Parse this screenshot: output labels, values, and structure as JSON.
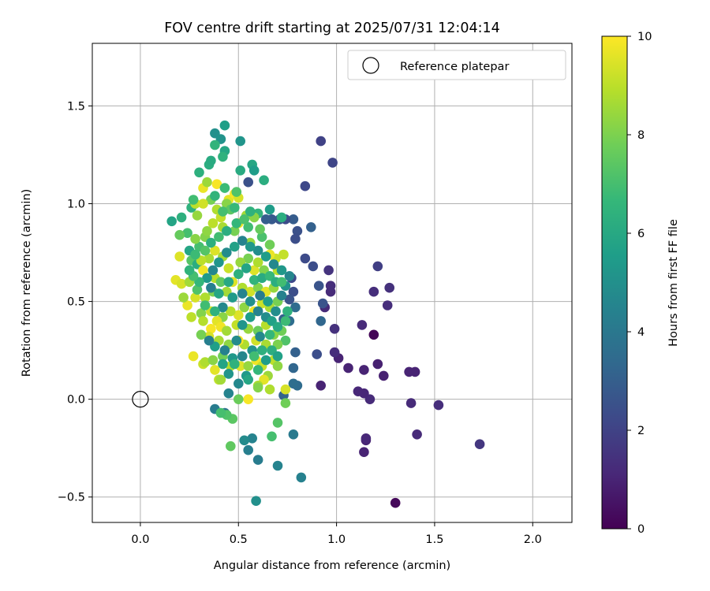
{
  "chart_data": {
    "type": "scatter",
    "title": "FOV centre drift starting at 2025/07/31 12:04:14",
    "xlabel": "Angular distance from reference (arcmin)",
    "ylabel": "Rotation from reference (arcmin)",
    "xlim": [
      -0.245,
      2.2
    ],
    "ylim": [
      -0.63,
      1.82
    ],
    "xticks": [
      0.0,
      0.5,
      1.0,
      1.5,
      2.0
    ],
    "xtick_labels": [
      "0.0",
      "0.5",
      "1.0",
      "1.5",
      "2.0"
    ],
    "yticks": [
      -0.5,
      0.0,
      0.5,
      1.0,
      1.5
    ],
    "ytick_labels": [
      "−0.5",
      "0.0",
      "0.5",
      "1.0",
      "1.5"
    ],
    "grid": true,
    "legend": {
      "position": "top-right",
      "label": "Reference platepar"
    },
    "reference_point": {
      "x": 0.0,
      "y": 0.0
    },
    "colorbar": {
      "label": "Hours from first FF file",
      "range": [
        0,
        10
      ],
      "ticks": [
        0,
        2,
        4,
        6,
        8,
        10
      ],
      "tick_labels": [
        "0",
        "2",
        "4",
        "6",
        "8",
        "10"
      ],
      "colormap": "viridis"
    },
    "colormap_stops": [
      "#440154",
      "#482878",
      "#3e4989",
      "#31688e",
      "#26828e",
      "#1f9e89",
      "#35b779",
      "#6ece58",
      "#b5de2b",
      "#fde725"
    ],
    "points": [
      [
        1.3,
        -0.53,
        0.2
      ],
      [
        1.19,
        0.33,
        0.1
      ],
      [
        1.14,
        -0.27,
        1.0
      ],
      [
        1.15,
        -0.21,
        1.0
      ],
      [
        1.15,
        -0.2,
        1.1
      ],
      [
        1.14,
        0.15,
        1.0
      ],
      [
        1.21,
        0.18,
        0.9
      ],
      [
        1.24,
        0.12,
        0.9
      ],
      [
        1.37,
        0.14,
        1.0
      ],
      [
        1.4,
        0.14,
        1.0
      ],
      [
        1.38,
        -0.02,
        1.2
      ],
      [
        1.52,
        -0.03,
        1.3
      ],
      [
        1.41,
        -0.18,
        1.2
      ],
      [
        1.73,
        -0.23,
        1.6
      ],
      [
        1.17,
        0.0,
        1.2
      ],
      [
        1.11,
        0.04,
        1.1
      ],
      [
        1.14,
        0.03,
        1.1
      ],
      [
        1.06,
        0.16,
        1.0
      ],
      [
        1.01,
        0.21,
        1.0
      ],
      [
        0.92,
        0.07,
        1.0
      ],
      [
        1.13,
        0.38,
        1.2
      ],
      [
        1.19,
        0.55,
        1.3
      ],
      [
        1.26,
        0.48,
        1.3
      ],
      [
        1.27,
        0.57,
        1.4
      ],
      [
        1.21,
        0.68,
        1.9
      ],
      [
        0.99,
        0.36,
        1.4
      ],
      [
        0.97,
        0.55,
        1.2
      ],
      [
        0.97,
        0.58,
        1.3
      ],
      [
        0.94,
        0.47,
        1.2
      ],
      [
        0.96,
        0.66,
        1.5
      ],
      [
        0.92,
        1.32,
        2.0
      ],
      [
        0.98,
        1.21,
        2.1
      ],
      [
        0.84,
        1.09,
        2.2
      ],
      [
        0.55,
        1.11,
        2.5
      ],
      [
        0.99,
        0.24,
        1.3
      ],
      [
        0.9,
        0.23,
        2.4
      ],
      [
        0.93,
        0.49,
        2.6
      ],
      [
        0.92,
        0.4,
        3.3
      ],
      [
        0.91,
        0.58,
        2.6
      ],
      [
        0.87,
        0.88,
        3.1
      ],
      [
        0.78,
        0.92,
        2.9
      ],
      [
        0.74,
        0.92,
        2.3
      ],
      [
        0.71,
        0.92,
        2.6
      ],
      [
        0.67,
        0.92,
        2.8
      ],
      [
        0.64,
        0.92,
        3.0
      ],
      [
        0.8,
        0.86,
        2.5
      ],
      [
        0.79,
        0.82,
        2.4
      ],
      [
        0.84,
        0.72,
        2.3
      ],
      [
        0.88,
        0.68,
        2.4
      ],
      [
        0.77,
        0.62,
        2.2
      ],
      [
        0.78,
        0.55,
        2.4
      ],
      [
        0.76,
        0.51,
        2.6
      ],
      [
        0.79,
        0.47,
        3.5
      ],
      [
        0.73,
        0.41,
        3.1
      ],
      [
        0.76,
        0.4,
        3.6
      ],
      [
        0.79,
        0.24,
        3.1
      ],
      [
        0.78,
        0.16,
        3.3
      ],
      [
        0.8,
        0.07,
        3.5
      ],
      [
        0.78,
        0.08,
        3.6
      ],
      [
        0.73,
        0.02,
        3.2
      ],
      [
        0.78,
        -0.18,
        4.1
      ],
      [
        0.82,
        -0.4,
        4.4
      ],
      [
        0.7,
        -0.34,
        4.5
      ],
      [
        0.6,
        -0.31,
        4.2
      ],
      [
        0.55,
        -0.26,
        4.3
      ],
      [
        0.57,
        -0.2,
        4.5
      ],
      [
        0.53,
        -0.21,
        4.8
      ],
      [
        0.59,
        -0.52,
        5.0
      ],
      [
        0.38,
        -0.05,
        4.2
      ],
      [
        0.43,
        -0.07,
        3.8
      ],
      [
        0.45,
        0.03,
        4.5
      ],
      [
        0.38,
        1.36,
        5.0
      ],
      [
        0.41,
        1.33,
        5.1
      ],
      [
        0.43,
        1.4,
        5.6
      ],
      [
        0.51,
        1.32,
        5.2
      ],
      [
        0.38,
        1.3,
        6.5
      ],
      [
        0.43,
        1.27,
        5.9
      ],
      [
        0.35,
        1.2,
        6.2
      ],
      [
        0.36,
        1.22,
        6.1
      ],
      [
        0.57,
        1.2,
        5.9
      ],
      [
        0.58,
        1.17,
        5.5
      ],
      [
        0.51,
        1.17,
        6.1
      ],
      [
        0.63,
        1.12,
        6.2
      ],
      [
        0.3,
        1.16,
        6.3
      ],
      [
        0.42,
        1.24,
        6.4
      ],
      [
        0.66,
        0.97,
        5.5
      ],
      [
        0.6,
        0.95,
        6.5
      ],
      [
        0.72,
        0.93,
        6.2
      ],
      [
        0.55,
        0.88,
        6.9
      ],
      [
        0.62,
        0.83,
        7.1
      ],
      [
        0.16,
        0.91,
        5.8
      ],
      [
        0.21,
        0.93,
        6.3
      ],
      [
        0.26,
        0.98,
        6.4
      ],
      [
        0.24,
        0.85,
        7.0
      ],
      [
        0.2,
        0.84,
        7.6
      ],
      [
        0.25,
        0.76,
        5.9
      ],
      [
        0.2,
        0.73,
        9.5
      ],
      [
        0.18,
        0.61,
        9.6
      ],
      [
        0.21,
        0.59,
        9.4
      ],
      [
        0.25,
        0.6,
        8.6
      ],
      [
        0.26,
        0.71,
        7.3
      ],
      [
        0.29,
        0.69,
        6.2
      ],
      [
        0.3,
        0.78,
        7.0
      ],
      [
        0.28,
        0.82,
        8.2
      ],
      [
        0.33,
        0.83,
        8.1
      ],
      [
        0.32,
        1.08,
        9.7
      ],
      [
        0.34,
        1.11,
        8.5
      ],
      [
        0.39,
        1.1,
        9.9
      ],
      [
        0.36,
        1.02,
        7.9
      ],
      [
        0.45,
        1.02,
        9.6
      ],
      [
        0.48,
        1.05,
        9.9
      ],
      [
        0.5,
        1.03,
        9.4
      ],
      [
        0.44,
        1.0,
        8.2
      ],
      [
        0.39,
        0.97,
        8.8
      ],
      [
        0.46,
        0.97,
        7.4
      ],
      [
        0.41,
        0.93,
        9.1
      ],
      [
        0.5,
        0.9,
        9.8
      ],
      [
        0.42,
        0.88,
        8.7
      ],
      [
        0.48,
        0.86,
        7.9
      ],
      [
        0.34,
        0.86,
        8.3
      ],
      [
        0.37,
        0.9,
        9.0
      ],
      [
        0.29,
        0.94,
        8.4
      ],
      [
        0.28,
        1.0,
        9.0
      ],
      [
        0.32,
        1.0,
        9.3
      ],
      [
        0.54,
        0.94,
        8.6
      ],
      [
        0.58,
        0.93,
        8.2
      ],
      [
        0.61,
        0.87,
        7.6
      ],
      [
        0.56,
        0.8,
        8.4
      ],
      [
        0.66,
        0.79,
        7.8
      ],
      [
        0.69,
        0.72,
        9.2
      ],
      [
        0.66,
        0.74,
        9.7
      ],
      [
        0.73,
        0.74,
        9.1
      ],
      [
        0.7,
        0.66,
        8.9
      ],
      [
        0.63,
        0.66,
        8.1
      ],
      [
        0.58,
        0.66,
        9.5
      ],
      [
        0.6,
        0.7,
        8.8
      ],
      [
        0.55,
        0.72,
        7.9
      ],
      [
        0.51,
        0.7,
        8.4
      ],
      [
        0.45,
        0.67,
        9.2
      ],
      [
        0.42,
        0.73,
        8.6
      ],
      [
        0.38,
        0.76,
        9.5
      ],
      [
        0.35,
        0.72,
        8.7
      ],
      [
        0.31,
        0.71,
        9.0
      ],
      [
        0.32,
        0.66,
        9.8
      ],
      [
        0.38,
        0.62,
        8.9
      ],
      [
        0.41,
        0.6,
        7.5
      ],
      [
        0.44,
        0.55,
        8.6
      ],
      [
        0.47,
        0.6,
        9.5
      ],
      [
        0.52,
        0.57,
        8.8
      ],
      [
        0.56,
        0.55,
        9.3
      ],
      [
        0.6,
        0.57,
        8.1
      ],
      [
        0.64,
        0.55,
        9.6
      ],
      [
        0.68,
        0.57,
        8.4
      ],
      [
        0.7,
        0.5,
        7.9
      ],
      [
        0.66,
        0.47,
        8.7
      ],
      [
        0.62,
        0.49,
        9.2
      ],
      [
        0.58,
        0.45,
        9.8
      ],
      [
        0.53,
        0.47,
        8.3
      ],
      [
        0.5,
        0.43,
        9.5
      ],
      [
        0.46,
        0.45,
        8.9
      ],
      [
        0.42,
        0.42,
        8.2
      ],
      [
        0.39,
        0.4,
        9.6
      ],
      [
        0.36,
        0.45,
        9.3
      ],
      [
        0.31,
        0.44,
        8.1
      ],
      [
        0.26,
        0.42,
        9.0
      ],
      [
        0.24,
        0.48,
        9.7
      ],
      [
        0.22,
        0.52,
        8.5
      ],
      [
        0.28,
        0.52,
        9.4
      ],
      [
        0.33,
        0.52,
        8.8
      ],
      [
        0.37,
        0.55,
        8.0
      ],
      [
        0.32,
        0.4,
        8.9
      ],
      [
        0.36,
        0.36,
        9.9
      ],
      [
        0.41,
        0.37,
        9.8
      ],
      [
        0.44,
        0.35,
        8.6
      ],
      [
        0.49,
        0.38,
        9.1
      ],
      [
        0.55,
        0.36,
        8.4
      ],
      [
        0.6,
        0.35,
        7.7
      ],
      [
        0.64,
        0.38,
        8.9
      ],
      [
        0.68,
        0.33,
        8.2
      ],
      [
        0.72,
        0.35,
        7.8
      ],
      [
        0.74,
        0.3,
        7.2
      ],
      [
        0.7,
        0.28,
        8.0
      ],
      [
        0.64,
        0.28,
        8.7
      ],
      [
        0.59,
        0.3,
        9.3
      ],
      [
        0.53,
        0.28,
        8.8
      ],
      [
        0.5,
        0.3,
        9.9
      ],
      [
        0.45,
        0.28,
        8.3
      ],
      [
        0.4,
        0.3,
        8.7
      ],
      [
        0.35,
        0.32,
        9.4
      ],
      [
        0.31,
        0.33,
        7.9
      ],
      [
        0.27,
        0.22,
        9.7
      ],
      [
        0.32,
        0.18,
        9.2
      ],
      [
        0.33,
        0.19,
        8.8
      ],
      [
        0.38,
        0.15,
        9.6
      ],
      [
        0.4,
        0.1,
        9.0
      ],
      [
        0.41,
        0.1,
        8.6
      ],
      [
        0.37,
        0.2,
        8.2
      ],
      [
        0.42,
        0.22,
        7.8
      ],
      [
        0.46,
        0.17,
        8.9
      ],
      [
        0.51,
        0.17,
        9.5
      ],
      [
        0.55,
        0.17,
        8.4
      ],
      [
        0.59,
        0.2,
        9.8
      ],
      [
        0.62,
        0.17,
        9.1
      ],
      [
        0.65,
        0.12,
        8.5
      ],
      [
        0.66,
        0.05,
        8.8
      ],
      [
        0.68,
        0.2,
        9.0
      ],
      [
        0.7,
        0.17,
        8.3
      ],
      [
        0.63,
        0.1,
        9.6
      ],
      [
        0.6,
        0.07,
        8.7
      ],
      [
        0.55,
        0.0,
        9.9
      ],
      [
        0.5,
        0.0,
        7.7
      ],
      [
        0.47,
        -0.1,
        7.4
      ],
      [
        0.44,
        -0.08,
        7.2
      ],
      [
        0.41,
        -0.07,
        7.0
      ],
      [
        0.46,
        -0.24,
        7.5
      ],
      [
        0.67,
        -0.19,
        7.0
      ],
      [
        0.7,
        -0.12,
        7.3
      ],
      [
        0.74,
        -0.02,
        7.8
      ],
      [
        0.74,
        0.05,
        9.4
      ],
      [
        0.6,
        0.06,
        8.1
      ],
      [
        0.49,
        0.3,
        4.8
      ],
      [
        0.52,
        0.38,
        5.2
      ],
      [
        0.56,
        0.42,
        5.5
      ],
      [
        0.6,
        0.45,
        4.5
      ],
      [
        0.64,
        0.42,
        4.9
      ],
      [
        0.67,
        0.4,
        5.7
      ],
      [
        0.61,
        0.32,
        4.7
      ],
      [
        0.57,
        0.25,
        5.1
      ],
      [
        0.52,
        0.22,
        4.6
      ],
      [
        0.47,
        0.21,
        5.3
      ],
      [
        0.43,
        0.25,
        4.4
      ],
      [
        0.38,
        0.27,
        5.6
      ],
      [
        0.35,
        0.3,
        4.3
      ],
      [
        0.42,
        0.47,
        4.7
      ],
      [
        0.47,
        0.52,
        5.4
      ],
      [
        0.52,
        0.54,
        4.5
      ],
      [
        0.56,
        0.5,
        5.0
      ],
      [
        0.61,
        0.53,
        4.2
      ],
      [
        0.65,
        0.5,
        5.6
      ],
      [
        0.69,
        0.45,
        4.9
      ],
      [
        0.72,
        0.53,
        4.4
      ],
      [
        0.74,
        0.58,
        5.1
      ],
      [
        0.76,
        0.63,
        4.6
      ],
      [
        0.72,
        0.66,
        5.3
      ],
      [
        0.68,
        0.69,
        4.7
      ],
      [
        0.64,
        0.73,
        5.5
      ],
      [
        0.6,
        0.76,
        4.9
      ],
      [
        0.56,
        0.78,
        5.3
      ],
      [
        0.52,
        0.81,
        4.5
      ],
      [
        0.48,
        0.78,
        5.7
      ],
      [
        0.44,
        0.75,
        4.8
      ],
      [
        0.4,
        0.7,
        5.2
      ],
      [
        0.37,
        0.66,
        4.6
      ],
      [
        0.34,
        0.62,
        5.4
      ],
      [
        0.36,
        0.57,
        4.3
      ],
      [
        0.4,
        0.54,
        5.9
      ],
      [
        0.45,
        0.6,
        6.0
      ],
      [
        0.5,
        0.64,
        6.3
      ],
      [
        0.54,
        0.67,
        5.8
      ],
      [
        0.58,
        0.61,
        6.5
      ],
      [
        0.62,
        0.62,
        6.1
      ],
      [
        0.66,
        0.63,
        6.7
      ],
      [
        0.69,
        0.6,
        6.2
      ],
      [
        0.72,
        0.6,
        6.9
      ],
      [
        0.75,
        0.45,
        6.4
      ],
      [
        0.74,
        0.4,
        6.8
      ],
      [
        0.7,
        0.37,
        6.0
      ],
      [
        0.66,
        0.33,
        6.6
      ],
      [
        0.62,
        0.25,
        6.3
      ],
      [
        0.58,
        0.22,
        6.9
      ],
      [
        0.54,
        0.12,
        5.4
      ],
      [
        0.5,
        0.08,
        4.7
      ],
      [
        0.45,
        0.13,
        5.2
      ],
      [
        0.42,
        0.18,
        5.8
      ],
      [
        0.48,
        0.18,
        6.4
      ],
      [
        0.55,
        0.1,
        5.9
      ],
      [
        0.6,
        0.15,
        6.6
      ],
      [
        0.64,
        0.2,
        5.5
      ],
      [
        0.67,
        0.25,
        6.2
      ],
      [
        0.7,
        0.22,
        5.7
      ],
      [
        0.38,
        0.45,
        6.4
      ],
      [
        0.33,
        0.48,
        6.9
      ],
      [
        0.29,
        0.56,
        7.2
      ],
      [
        0.3,
        0.6,
        6.6
      ],
      [
        0.27,
        0.63,
        7.0
      ],
      [
        0.25,
        0.66,
        6.5
      ],
      [
        0.28,
        0.74,
        6.8
      ],
      [
        0.33,
        0.76,
        7.3
      ],
      [
        0.36,
        0.8,
        6.3
      ],
      [
        0.4,
        0.83,
        6.9
      ],
      [
        0.44,
        0.86,
        6.2
      ],
      [
        0.49,
        0.9,
        6.6
      ],
      [
        0.53,
        0.92,
        7.1
      ],
      [
        0.56,
        0.96,
        6.4
      ],
      [
        0.48,
        0.98,
        6.7
      ],
      [
        0.42,
        0.96,
        7.0
      ],
      [
        0.38,
        1.04,
        6.5
      ],
      [
        0.43,
        1.08,
        6.8
      ],
      [
        0.49,
        1.06,
        7.2
      ],
      [
        0.27,
        1.02,
        6.9
      ]
    ]
  }
}
